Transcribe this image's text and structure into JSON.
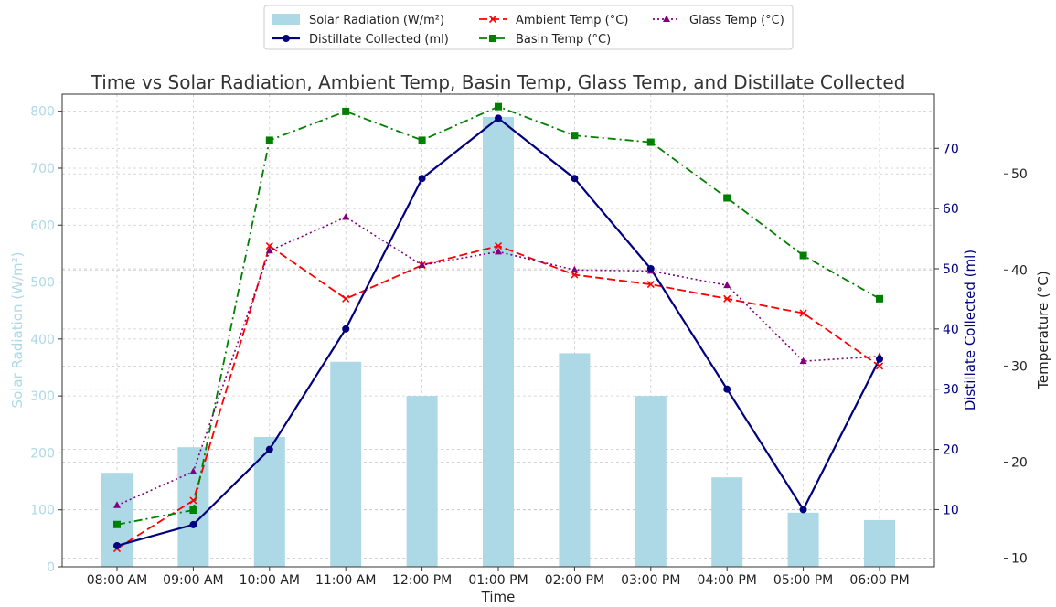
{
  "chart_data": {
    "type": "bar-line-combo",
    "title": "Time vs Solar Radiation, Ambient Temp, Basin Temp, Glass Temp, and Distillate Collected",
    "xlabel": "Time",
    "categories": [
      "08:00 AM",
      "09:00 AM",
      "10:00 AM",
      "11:00 AM",
      "12:00 PM",
      "01:00 PM",
      "02:00 PM",
      "03:00 PM",
      "04:00 PM",
      "05:00 PM",
      "06:00 PM"
    ],
    "axes": {
      "solar": {
        "label": "Solar Radiation (W/m²)",
        "range": [
          0,
          830
        ],
        "ticks": [
          0,
          100,
          200,
          300,
          400,
          500,
          600,
          700,
          800
        ],
        "color": "#add8e6"
      },
      "distillate": {
        "label": "Distillate Collected (ml)",
        "range": [
          0.5,
          79
        ],
        "ticks": [
          10,
          20,
          30,
          40,
          50,
          60,
          70
        ],
        "color": "#000080"
      },
      "temperature": {
        "label": "Temperature (°C)",
        "range": [
          9.1,
          58.3
        ],
        "ticks": [
          10,
          20,
          30,
          40,
          50
        ],
        "color": "#222222"
      }
    },
    "series": [
      {
        "name": "Solar Radiation (W/m²)",
        "kind": "bar",
        "axis": "solar",
        "color": "#add8e6",
        "values": [
          165,
          210,
          228,
          360,
          300,
          790,
          375,
          300,
          157,
          95,
          82
        ]
      },
      {
        "name": "Distillate Collected (ml)",
        "kind": "line",
        "axis": "distillate",
        "color": "#000080",
        "dash": "solid",
        "marker": "circle",
        "values": [
          4,
          7.5,
          20,
          40,
          65,
          75,
          65,
          50,
          30,
          10,
          35
        ]
      },
      {
        "name": "Ambient Temp (°C)",
        "kind": "line",
        "axis": "temperature",
        "color": "#ff0000",
        "dash": "dashed",
        "marker": "x",
        "values": [
          11,
          16,
          42.5,
          37,
          40.5,
          42.5,
          39.5,
          38.5,
          37,
          35.5,
          30
        ]
      },
      {
        "name": "Basin Temp (°C)",
        "kind": "line",
        "axis": "temperature",
        "color": "#008000",
        "dash": "dashdot",
        "marker": "square",
        "values": [
          13.5,
          15,
          53.5,
          56.5,
          53.5,
          57,
          54,
          53.3,
          47.5,
          41.5,
          37
        ]
      },
      {
        "name": "Glass Temp (°C)",
        "kind": "line",
        "axis": "temperature",
        "color": "#800080",
        "dash": "dotted",
        "marker": "triangle",
        "values": [
          15.5,
          19,
          42,
          45.5,
          40.5,
          41.9,
          40,
          39.9,
          38.4,
          30.5,
          31
        ]
      }
    ],
    "grid": true,
    "legend_position": "top-center"
  }
}
